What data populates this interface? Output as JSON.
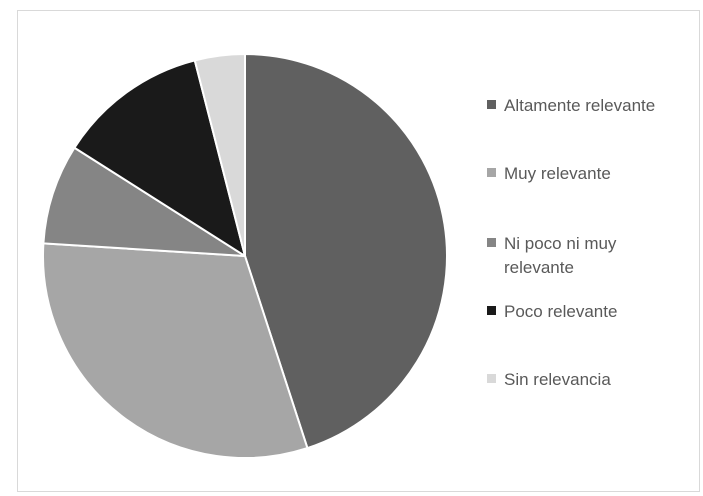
{
  "chart_data": {
    "type": "pie",
    "title": "",
    "start_angle_deg": 0,
    "direction": "clockwise",
    "legend_position": "right",
    "categories": [
      "Altamente relevante",
      "Muy relevante",
      "Ni poco ni muy relevante",
      "Poco relevante",
      "Sin relevancia"
    ],
    "values": [
      45,
      31,
      8,
      12,
      4
    ],
    "colors": [
      "#606060",
      "#a6a6a6",
      "#858585",
      "#1a1a1a",
      "#d9d9d9"
    ]
  }
}
